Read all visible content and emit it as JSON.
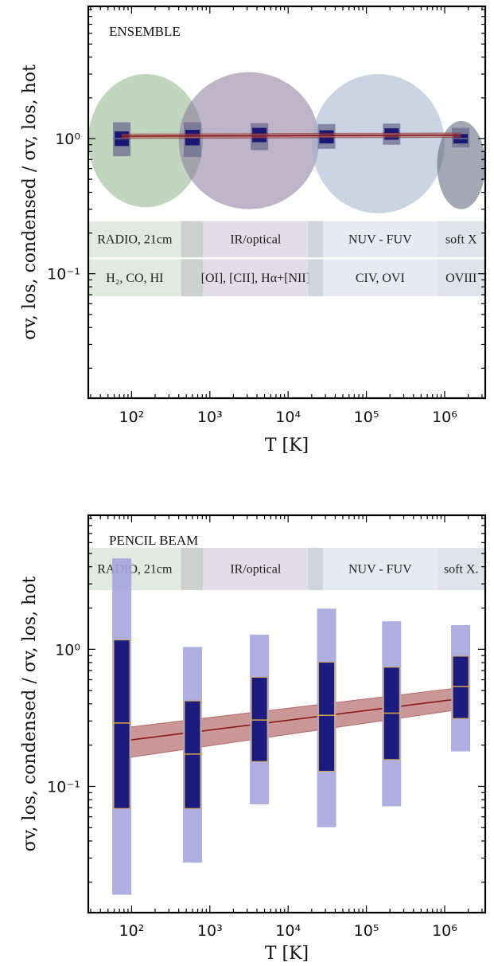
{
  "chart_data": [
    {
      "type": "scatter",
      "title": "ENSEMBLE",
      "xlabel": "T  [K]",
      "ylabel": "σv, los, condensed / σv, los, hot",
      "xscale": "log",
      "yscale": "log",
      "xlim": [
        28,
        3300000
      ],
      "ylim": [
        0.012,
        9.5
      ],
      "xticks": [
        {
          "value": 100,
          "label": "10²"
        },
        {
          "value": 1000,
          "label": "10³"
        },
        {
          "value": 10000,
          "label": "10⁴"
        },
        {
          "value": 100000,
          "label": "10⁵"
        },
        {
          "value": 1000000,
          "label": "10⁶"
        }
      ],
      "yticks": [
        {
          "value": 1,
          "label": "10⁰"
        },
        {
          "value": 0.1,
          "label": "10⁻¹"
        }
      ],
      "ellipses": [
        {
          "x_range": [
            28,
            820
          ],
          "y_range": [
            0.31,
            3.0
          ],
          "color": "#8fb38b"
        },
        {
          "x_range": [
            400,
            25000
          ],
          "y_range": [
            0.3,
            3.1
          ],
          "color": "#8a789a"
        },
        {
          "x_range": [
            20000,
            1000000
          ],
          "y_range": [
            0.28,
            3.0
          ],
          "color": "#9fb0cc"
        },
        {
          "x_range": [
            800000,
            3300000
          ],
          "y_range": [
            0.3,
            1.35
          ],
          "color": "#5a6178"
        }
      ],
      "points": [
        {
          "x": 75,
          "median": 1.0,
          "q_low": 0.88,
          "q_high": 1.13,
          "outer_low": 0.74,
          "outer_high": 1.32
        },
        {
          "x": 600,
          "median": 1.02,
          "q_low": 0.89,
          "q_high": 1.16,
          "outer_low": 0.73,
          "outer_high": 1.32
        },
        {
          "x": 4300,
          "median": 1.06,
          "q_low": 0.94,
          "q_high": 1.2,
          "outer_low": 0.82,
          "outer_high": 1.3
        },
        {
          "x": 31000,
          "median": 1.04,
          "q_low": 0.92,
          "q_high": 1.15,
          "outer_low": 0.84,
          "outer_high": 1.28
        },
        {
          "x": 210000,
          "median": 1.08,
          "q_low": 0.98,
          "q_high": 1.19,
          "outer_low": 0.9,
          "outer_high": 1.29
        },
        {
          "x": 1600000,
          "median": 1.0,
          "q_low": 0.92,
          "q_high": 1.08,
          "outer_low": 0.86,
          "outer_high": 1.2
        }
      ],
      "fit": {
        "x": [
          75,
          1600000
        ],
        "y": [
          1.04,
          1.06
        ],
        "band_low": [
          1.0,
          1.02
        ],
        "band_high": [
          1.08,
          1.1
        ]
      },
      "bands": [
        {
          "row": "upper",
          "x_range": [
            28,
            430
          ],
          "label": "RADIO, 21cm",
          "shade": "#dde5dc"
        },
        {
          "row": "upper",
          "x_range": [
            430,
            820
          ],
          "label": "",
          "shade": "#c6c9c8"
        },
        {
          "row": "upper",
          "x_range": [
            820,
            18000
          ],
          "label": "IR/optical",
          "shade": "#ddd8e0"
        },
        {
          "row": "upper",
          "x_range": [
            18000,
            28000
          ],
          "label": "",
          "shade": "#c8ccd5"
        },
        {
          "row": "upper",
          "x_range": [
            28000,
            800000
          ],
          "label": "NUV - FUV",
          "shade": "#e3e7ee"
        },
        {
          "row": "upper",
          "x_range": [
            800000,
            3300000
          ],
          "label": "soft X",
          "shade": "#dcdee4"
        },
        {
          "row": "lower",
          "x_range": [
            28,
            430
          ],
          "label": "H₂, CO, HI",
          "shade": "#dde5dc"
        },
        {
          "row": "lower",
          "x_range": [
            430,
            820
          ],
          "label": "",
          "shade": "#c6c9c8"
        },
        {
          "row": "lower",
          "x_range": [
            820,
            18000
          ],
          "label": "[OI], [CII], Hα+[NII]",
          "shade": "#ddd8e0"
        },
        {
          "row": "lower",
          "x_range": [
            18000,
            28000
          ],
          "label": "",
          "shade": "#c8ccd5"
        },
        {
          "row": "lower",
          "x_range": [
            28000,
            800000
          ],
          "label": "CIV, OVI",
          "shade": "#e3e7ee"
        },
        {
          "row": "lower",
          "x_range": [
            800000,
            3300000
          ],
          "label": "OVIII",
          "shade": "#dcdee4"
        }
      ],
      "band_rows": {
        "upper": [
          0.132,
          0.245
        ],
        "lower": [
          0.068,
          0.128
        ]
      },
      "colors": {
        "box_outer": "#6c6c8f",
        "box_inner": "#1b1875",
        "median_line": "#6f6f90",
        "fit_line": "#8a1a1a",
        "fit_band": "#a85a5a"
      }
    },
    {
      "type": "scatter",
      "title": "PENCIL BEAM",
      "xlabel": "T  [K]",
      "ylabel": "σv, los, condensed / σv, los, hot",
      "xscale": "log",
      "yscale": "log",
      "xlim": [
        28,
        3300000
      ],
      "ylim": [
        0.012,
        9.5
      ],
      "xticks": [
        {
          "value": 100,
          "label": "10²"
        },
        {
          "value": 1000,
          "label": "10³"
        },
        {
          "value": 10000,
          "label": "10⁴"
        },
        {
          "value": 100000,
          "label": "10⁵"
        },
        {
          "value": 1000000,
          "label": "10⁶"
        }
      ],
      "yticks": [
        {
          "value": 1,
          "label": "10⁰"
        },
        {
          "value": 0.1,
          "label": "10⁻¹"
        }
      ],
      "ellipses": [],
      "points": [
        {
          "x": 75,
          "median": 0.29,
          "q_low": 0.069,
          "q_high": 1.17,
          "outer_low": 0.0162,
          "outer_high": 4.6
        },
        {
          "x": 600,
          "median": 0.172,
          "q_low": 0.069,
          "q_high": 0.42,
          "outer_low": 0.0278,
          "outer_high": 1.04
        },
        {
          "x": 4300,
          "median": 0.305,
          "q_low": 0.152,
          "q_high": 0.625,
          "outer_low": 0.074,
          "outer_high": 1.28
        },
        {
          "x": 31000,
          "median": 0.33,
          "q_low": 0.129,
          "q_high": 0.805,
          "outer_low": 0.0504,
          "outer_high": 1.98
        },
        {
          "x": 210000,
          "median": 0.342,
          "q_low": 0.157,
          "q_high": 0.74,
          "outer_low": 0.0716,
          "outer_high": 1.6
        },
        {
          "x": 1600000,
          "median": 0.535,
          "q_low": 0.313,
          "q_high": 0.89,
          "outer_low": 0.18,
          "outer_high": 1.5
        }
      ],
      "fit": {
        "x": [
          90,
          1800000
        ],
        "y": [
          0.217,
          0.44
        ],
        "band_low": [
          0.162,
          0.368
        ],
        "band_high": [
          0.27,
          0.53
        ]
      },
      "bands": [
        {
          "row": "upper",
          "x_range": [
            28,
            430
          ],
          "label": "RADIO, 21cm",
          "shade": "#dde5dc"
        },
        {
          "row": "upper",
          "x_range": [
            430,
            820
          ],
          "label": "",
          "shade": "#c6c9c8"
        },
        {
          "row": "upper",
          "x_range": [
            820,
            18000
          ],
          "label": "IR/optical",
          "shade": "#ddd8e0"
        },
        {
          "row": "upper",
          "x_range": [
            18000,
            28000
          ],
          "label": "",
          "shade": "#c8ccd5"
        },
        {
          "row": "upper",
          "x_range": [
            28000,
            800000
          ],
          "label": "NUV - FUV",
          "shade": "#e3e7ee"
        },
        {
          "row": "upper",
          "x_range": [
            800000,
            3300000
          ],
          "label": "soft X.",
          "shade": "#dcdee4"
        }
      ],
      "band_rows": {
        "upper": [
          2.7,
          5.5
        ]
      },
      "colors": {
        "box_outer": "#a5a5de",
        "box_inner": "#1c1c80",
        "median_line": "#d8a64a",
        "fit_line": "#8a1a1a",
        "fit_band": "#b56a6a"
      }
    }
  ]
}
